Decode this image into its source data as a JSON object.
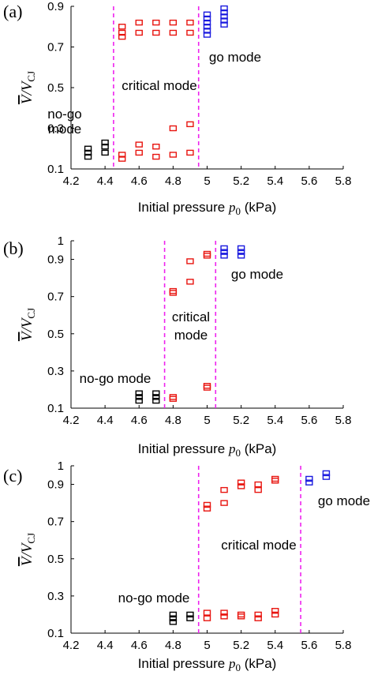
{
  "chart_data": [
    {
      "type": "scatter",
      "panel_label": "(a)",
      "xlabel": "Initial pressure p0 (kPa)",
      "xlabel_parts": {
        "pre": "Initial pressure ",
        "sym": "p",
        "sub": "0",
        "post": " (kPa)"
      },
      "ylabel": "V̄/VCJ",
      "xlim": [
        4.2,
        5.8
      ],
      "ylim": [
        0.1,
        0.9
      ],
      "xticks": [
        "4.2",
        "4.4",
        "4.6",
        "4.8",
        "5",
        "5.2",
        "5.4",
        "5.6",
        "5.8"
      ],
      "yticks": [
        "0.1",
        "0.3",
        "0.5",
        "0.7",
        "0.9"
      ],
      "boundaries": [
        4.45,
        4.95
      ],
      "series": [
        {
          "color": "#000000",
          "mode": "no-go",
          "x": [
            4.3,
            4.3,
            4.3,
            4.4,
            4.4,
            4.4
          ],
          "y": [
            0.16,
            0.18,
            0.2,
            0.18,
            0.21,
            0.23
          ]
        },
        {
          "color": "#e8140f",
          "mode": "critical",
          "x": [
            4.5,
            4.5,
            4.5,
            4.6,
            4.6,
            4.7,
            4.7,
            4.8,
            4.8,
            4.9,
            4.9,
            4.5,
            4.5,
            4.6,
            4.6,
            4.7,
            4.7,
            4.8,
            4.8,
            4.9,
            4.9
          ],
          "y": [
            0.75,
            0.77,
            0.8,
            0.77,
            0.82,
            0.77,
            0.82,
            0.77,
            0.82,
            0.77,
            0.82,
            0.15,
            0.17,
            0.18,
            0.22,
            0.16,
            0.21,
            0.17,
            0.3,
            0.18,
            0.32
          ]
        },
        {
          "color": "#1a1adf",
          "mode": "go",
          "x": [
            5,
            5,
            5,
            5,
            5,
            5,
            5.1,
            5.1,
            5.1,
            5.1,
            5.1
          ],
          "y": [
            0.76,
            0.78,
            0.8,
            0.82,
            0.84,
            0.86,
            0.81,
            0.83,
            0.85,
            0.87,
            0.89
          ]
        }
      ],
      "annotations": [
        {
          "text": "no-go",
          "color": "#000000"
        },
        {
          "text": "mode",
          "color": "#000000"
        },
        {
          "text": "critical mode",
          "color": "#e8140f"
        },
        {
          "text": "go mode",
          "color": "#1a1adf"
        }
      ]
    },
    {
      "type": "scatter",
      "panel_label": "(b)",
      "xlabel": "Initial pressure p0 (kPa)",
      "xlabel_parts": {
        "pre": "Initial pressure ",
        "sym": "p",
        "sub": "0",
        "post": " (kPa)"
      },
      "ylabel": "V̄/VCJ",
      "xlim": [
        4.2,
        5.8
      ],
      "ylim": [
        0.1,
        1.0
      ],
      "xticks": [
        "4.2",
        "4.4",
        "4.6",
        "4.8",
        "5",
        "5.2",
        "5.4",
        "5.6",
        "5.8"
      ],
      "yticks": [
        "0.1",
        "0.3",
        "0.5",
        "0.7",
        "0.9",
        "1"
      ],
      "boundaries": [
        4.75,
        5.05
      ],
      "series": [
        {
          "color": "#000000",
          "mode": "no-go",
          "x": [
            4.6,
            4.6,
            4.6,
            4.7,
            4.7,
            4.7
          ],
          "y": [
            0.14,
            0.16,
            0.18,
            0.14,
            0.16,
            0.18
          ]
        },
        {
          "color": "#e8140f",
          "mode": "critical",
          "x": [
            4.8,
            4.8,
            4.9,
            4.9,
            5,
            5,
            4.8,
            4.8,
            5,
            5
          ],
          "y": [
            0.72,
            0.73,
            0.78,
            0.89,
            0.92,
            0.93,
            0.16,
            0.15,
            0.21,
            0.22
          ]
        },
        {
          "color": "#1a1adf",
          "mode": "go",
          "x": [
            5.1,
            5.1,
            5.1,
            5.2,
            5.2,
            5.2
          ],
          "y": [
            0.92,
            0.94,
            0.96,
            0.92,
            0.94,
            0.96
          ]
        }
      ],
      "annotations": [
        {
          "text": "no-go mode",
          "color": "#000000"
        },
        {
          "text": "critical",
          "color": "#e8140f"
        },
        {
          "text": "mode",
          "color": "#e8140f"
        },
        {
          "text": "go mode",
          "color": "#1a1adf"
        }
      ]
    },
    {
      "type": "scatter",
      "panel_label": "(c)",
      "xlabel": "Initial pressure p0 (kPa)",
      "xlabel_parts": {
        "pre": "Initial pressure ",
        "sym": "p",
        "sub": "0",
        "post": " (kPa)"
      },
      "ylabel": "V̄/VCJ",
      "xlim": [
        4.2,
        5.8
      ],
      "ylim": [
        0.1,
        1.0
      ],
      "xticks": [
        "4.2",
        "4.4",
        "4.6",
        "4.8",
        "5",
        "5.2",
        "5.4",
        "5.6",
        "5.8"
      ],
      "yticks": [
        "0.1",
        "0.3",
        "0.5",
        "0.7",
        "0.9",
        "1"
      ],
      "boundaries": [
        4.95,
        5.55
      ],
      "series": [
        {
          "color": "#000000",
          "mode": "no-go",
          "x": [
            4.8,
            4.8,
            4.8,
            4.9,
            4.9
          ],
          "y": [
            0.16,
            0.18,
            0.2,
            0.18,
            0.2
          ]
        },
        {
          "color": "#e8140f",
          "mode": "critical",
          "x": [
            5,
            5,
            5.1,
            5.1,
            5.2,
            5.2,
            5.3,
            5.3,
            5.4,
            5.4,
            5,
            5,
            5.1,
            5.1,
            5.2,
            5.2,
            5.3,
            5.3,
            5.4,
            5.4
          ],
          "y": [
            0.77,
            0.79,
            0.8,
            0.87,
            0.89,
            0.91,
            0.87,
            0.9,
            0.92,
            0.93,
            0.18,
            0.21,
            0.19,
            0.21,
            0.19,
            0.2,
            0.18,
            0.2,
            0.2,
            0.22
          ]
        },
        {
          "color": "#1a1adf",
          "mode": "go",
          "x": [
            5.6,
            5.6,
            5.7,
            5.7
          ],
          "y": [
            0.91,
            0.93,
            0.94,
            0.96
          ]
        }
      ],
      "annotations": [
        {
          "text": "no-go mode",
          "color": "#000000"
        },
        {
          "text": "critical mode",
          "color": "#e8140f"
        },
        {
          "text": "go mode",
          "color": "#1a1adf"
        }
      ]
    }
  ],
  "boundary_color": "#ee22ee"
}
